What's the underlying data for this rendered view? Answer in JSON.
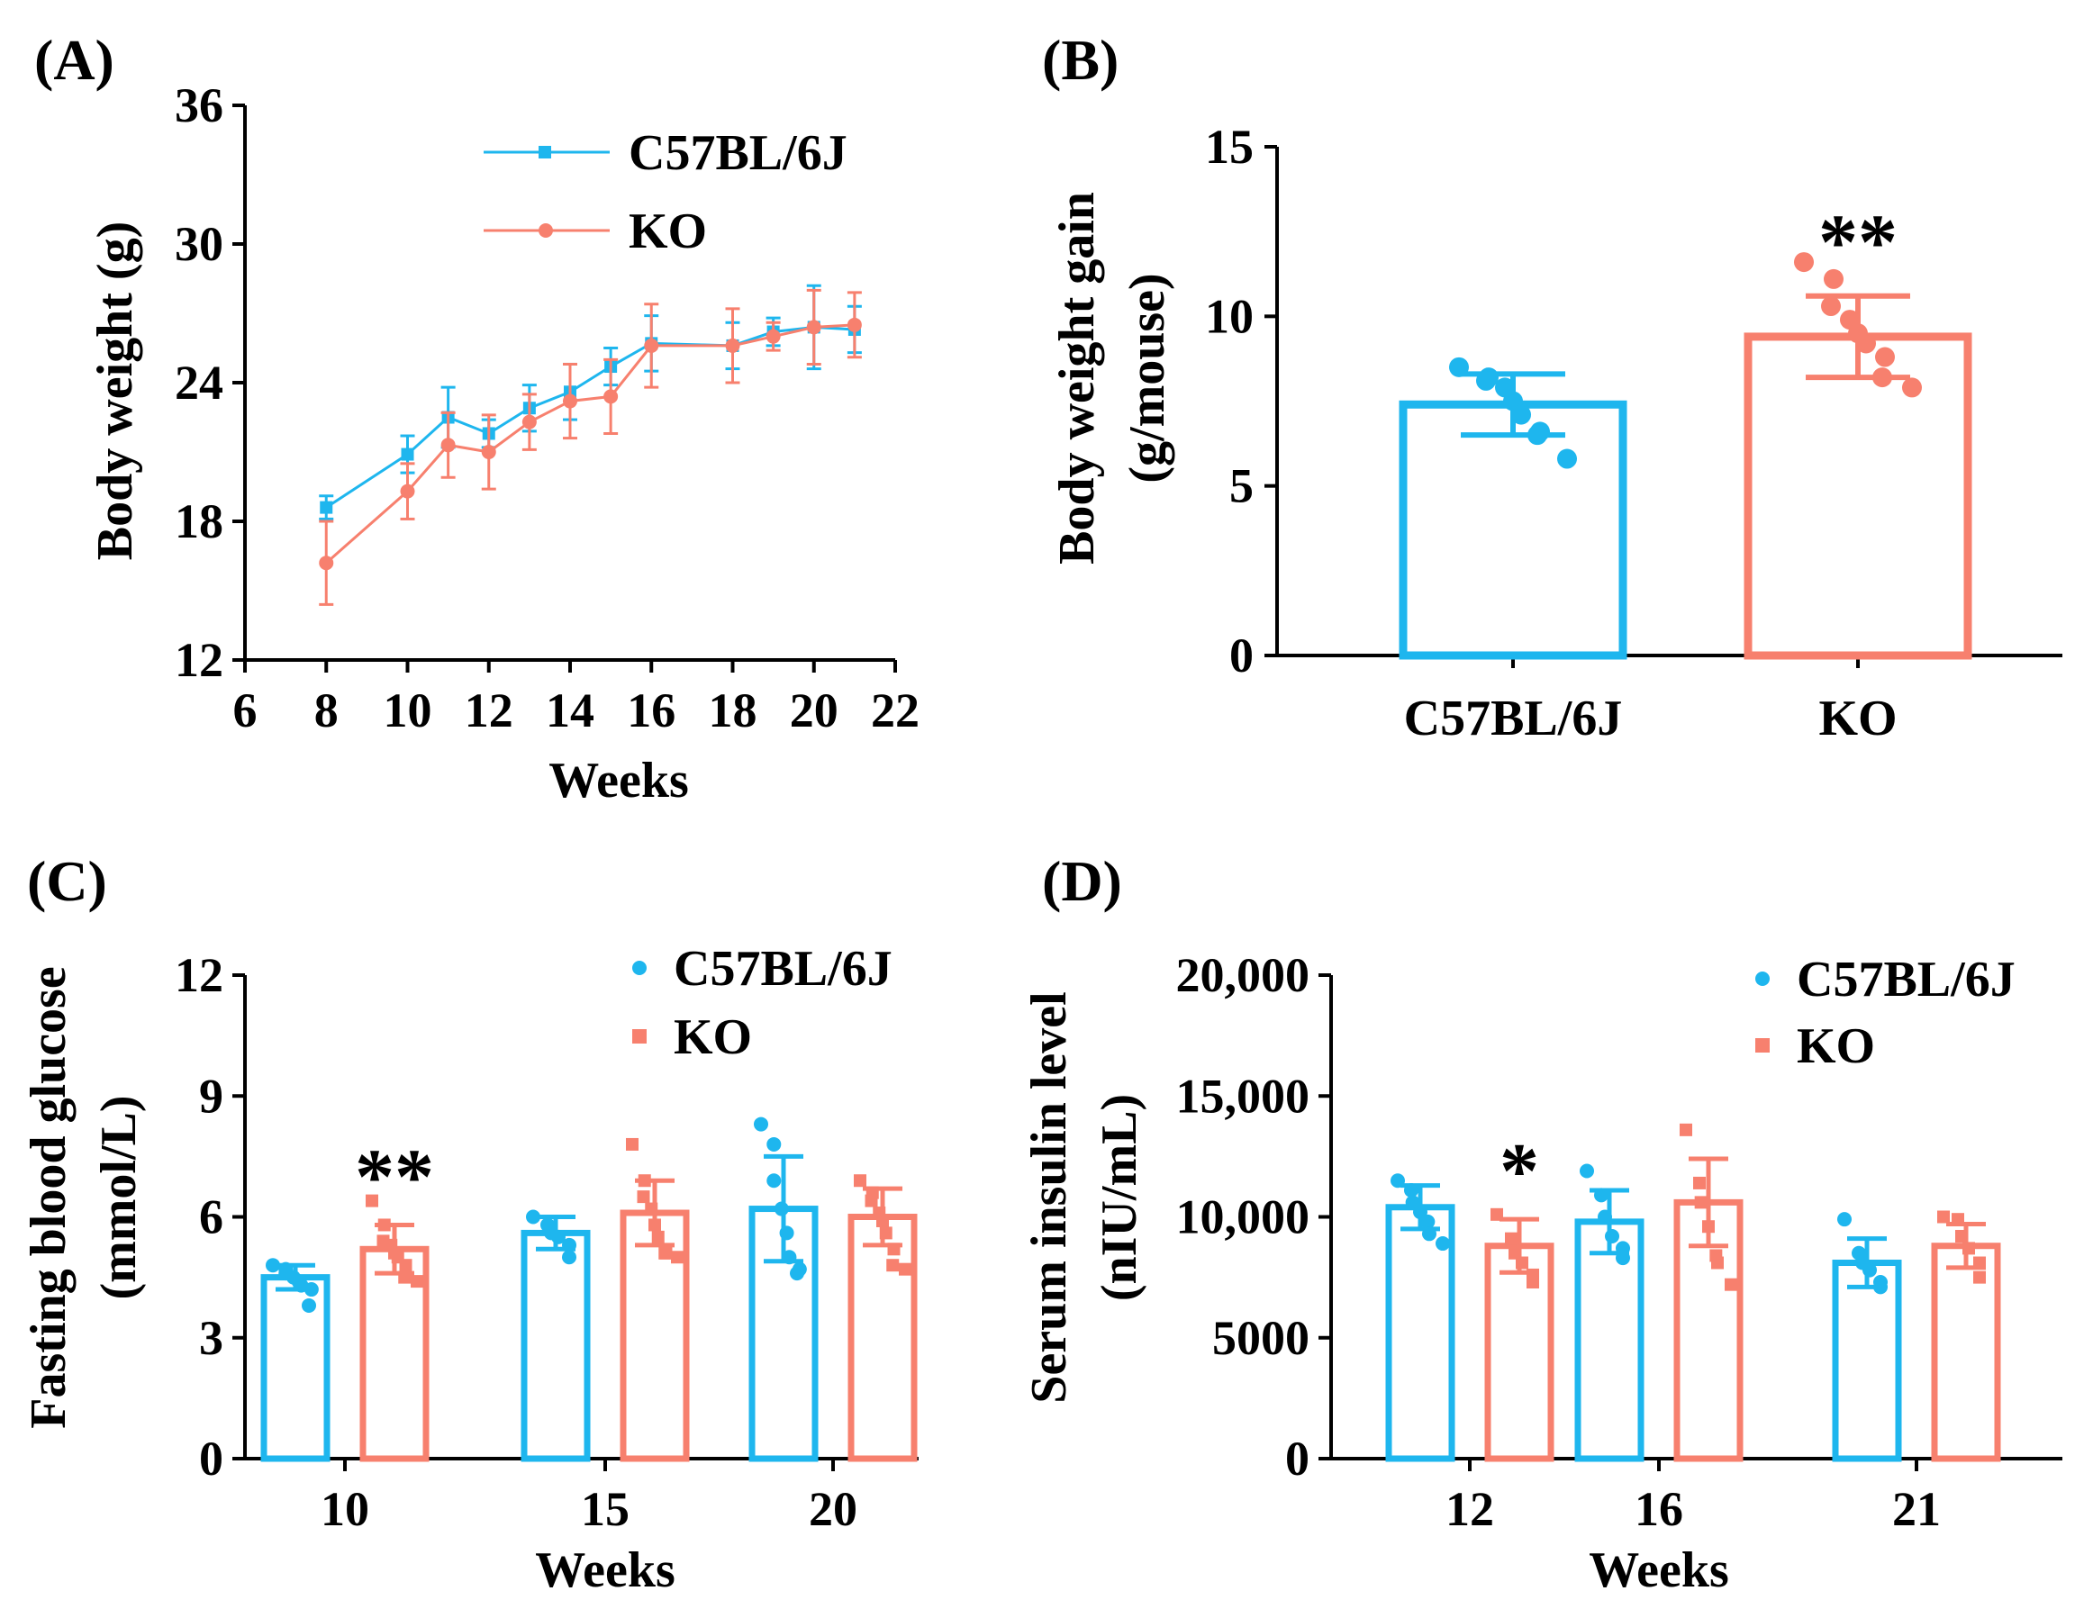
{
  "colors": {
    "c57": "#1EB6EE",
    "ko": "#F7806E",
    "axis": "#000000"
  },
  "panels": {
    "A": {
      "letter": "(A)"
    },
    "B": {
      "letter": "(B)"
    },
    "C": {
      "letter": "(C)"
    },
    "D": {
      "letter": "(D)"
    }
  },
  "chart_data": [
    {
      "id": "A",
      "type": "line",
      "title": "",
      "xlabel": "Weeks",
      "ylabel": "Body weight (g)",
      "xlim": [
        6,
        22
      ],
      "ylim": [
        12,
        36
      ],
      "xticks": [
        6,
        8,
        10,
        12,
        14,
        16,
        18,
        20,
        22
      ],
      "yticks": [
        12,
        18,
        24,
        30,
        36
      ],
      "legend_position": "top-right",
      "series": [
        {
          "name": "C57BL/6J",
          "marker": "square",
          "x": [
            8,
            10,
            11,
            12,
            13,
            14,
            15,
            16,
            18,
            19,
            20,
            21
          ],
          "y": [
            18.6,
            20.9,
            22.5,
            21.8,
            22.9,
            23.6,
            24.7,
            25.7,
            25.6,
            26.2,
            26.4,
            26.3
          ],
          "err": [
            0.5,
            0.8,
            1.3,
            0.6,
            1.0,
            1.2,
            0.8,
            1.2,
            1.0,
            0.6,
            1.8,
            1.0
          ]
        },
        {
          "name": "KO",
          "marker": "circle",
          "x": [
            8,
            10,
            11,
            12,
            13,
            14,
            15,
            16,
            18,
            19,
            20,
            21
          ],
          "y": [
            16.2,
            19.3,
            21.3,
            21.0,
            22.3,
            23.2,
            23.4,
            25.6,
            25.6,
            26.0,
            26.4,
            26.5
          ],
          "err": [
            1.8,
            1.2,
            1.4,
            1.6,
            1.2,
            1.6,
            1.6,
            1.8,
            1.6,
            0.6,
            1.6,
            1.4
          ]
        }
      ]
    },
    {
      "id": "B",
      "type": "bar",
      "title": "",
      "xlabel": "",
      "ylabel": "Body weight gain (g/mouse)",
      "ylabel_lines": [
        "Body weight gain",
        "(g/mouse)"
      ],
      "ylim": [
        0,
        15
      ],
      "yticks": [
        0,
        5,
        10,
        15
      ],
      "categories": [
        "C57BL/6J",
        "KO"
      ],
      "values": [
        7.4,
        9.4
      ],
      "err": [
        0.9,
        1.2
      ],
      "points": [
        [
          8.5,
          8.2,
          8.1,
          7.9,
          7.5,
          7.1,
          6.6,
          6.5,
          5.8
        ],
        [
          11.6,
          11.1,
          10.3,
          9.9,
          9.5,
          9.2,
          8.8,
          8.2,
          7.9
        ]
      ],
      "significance": [
        null,
        "**"
      ]
    },
    {
      "id": "C",
      "type": "bar",
      "title": "",
      "xlabel": "Weeks",
      "ylabel": "Fasting blood glucose (mmol/L)",
      "ylabel_lines": [
        "Fasting blood glucose",
        "(mmol/L)"
      ],
      "ylim": [
        0,
        12
      ],
      "yticks": [
        0,
        3,
        6,
        9,
        12
      ],
      "categories": [
        "10",
        "15",
        "20"
      ],
      "legend_position": "top-right",
      "series": [
        {
          "name": "C57BL/6J",
          "marker": "circle",
          "values": [
            4.5,
            5.6,
            6.2
          ],
          "err": [
            0.3,
            0.4,
            1.3
          ],
          "points": [
            [
              4.8,
              4.7,
              4.6,
              4.5,
              4.4,
              4.3,
              4.2,
              3.8
            ],
            [
              6.0,
              5.8,
              5.6,
              5.5,
              5.3,
              5.0
            ],
            [
              8.3,
              7.8,
              6.9,
              6.2,
              5.6,
              5.0,
              4.7,
              4.6
            ]
          ]
        },
        {
          "name": "KO",
          "marker": "square",
          "values": [
            5.2,
            6.1,
            6.0
          ],
          "err": [
            0.6,
            0.8,
            0.7
          ],
          "points": [
            [
              6.4,
              5.8,
              5.4,
              5.3,
              5.1,
              5.0,
              4.8,
              4.5,
              4.4
            ],
            [
              7.8,
              6.9,
              6.5,
              6.2,
              5.8,
              5.5,
              5.1,
              5.1,
              5.0
            ],
            [
              6.9,
              6.6,
              6.4,
              6.1,
              5.9,
              5.6,
              5.2,
              4.8,
              4.7
            ]
          ]
        }
      ],
      "significance": {
        "category": "10",
        "series": "KO",
        "label": "**"
      }
    },
    {
      "id": "D",
      "type": "bar",
      "title": "",
      "xlabel": "Weeks",
      "ylabel": "Serum insulin level (nIU/mL)",
      "ylabel_lines": [
        "Serum insulin level",
        "(nIU/mL)"
      ],
      "ylim": [
        0,
        20000
      ],
      "yticks": [
        0,
        5000,
        10000,
        15000,
        20000
      ],
      "ytick_labels": [
        "0",
        "5000",
        "10,000",
        "15,000",
        "20,000"
      ],
      "categories": [
        "12",
        "16",
        "21"
      ],
      "legend_position": "top-right",
      "series": [
        {
          "name": "C57BL/6J",
          "marker": "circle",
          "values": [
            10400,
            9800,
            8100
          ],
          "err": [
            900,
            1300,
            1000
          ],
          "points": [
            [
              11500,
              11100,
              10600,
              10200,
              9800,
              9300,
              8900
            ],
            [
              11900,
              10900,
              10000,
              9200,
              8700,
              8300
            ],
            [
              9900,
              8500,
              8100,
              7800,
              7300,
              7100
            ]
          ]
        },
        {
          "name": "KO",
          "marker": "square",
          "values": [
            8800,
            10600,
            8800
          ],
          "err": [
            1100,
            1800,
            900
          ],
          "points": [
            [
              10100,
              9100,
              8500,
              8100,
              7600,
              7300
            ],
            [
              13600,
              11400,
              10600,
              9600,
              8400,
              8100,
              7200
            ],
            [
              10000,
              9900,
              9200,
              8700,
              8100,
              7500
            ]
          ]
        }
      ],
      "significance": {
        "category": "12",
        "series": "KO",
        "label": "*"
      }
    }
  ]
}
